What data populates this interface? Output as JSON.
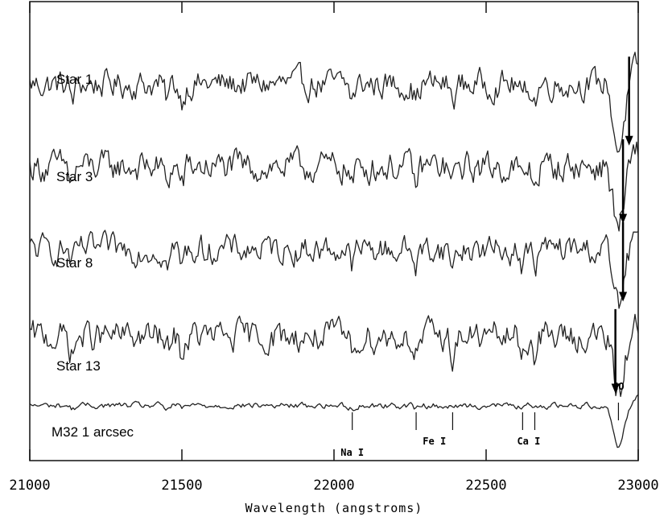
{
  "chart_data": {
    "type": "line",
    "title": "",
    "xlabel": "Wavelength (angstroms)",
    "ylabel": "",
    "xlim": [
      21000,
      23000
    ],
    "xticks": [
      21000,
      21500,
      22000,
      22500,
      23000
    ],
    "grid": false,
    "series": [
      {
        "name": "Star 1",
        "baseline": 0.82,
        "noise": 0.055,
        "co_depth": 0.14,
        "arrow_x": 22970
      },
      {
        "name": "Star 3",
        "baseline": 0.64,
        "noise": 0.06,
        "co_depth": 0.13,
        "arrow_x": 22950
      },
      {
        "name": "Star 8",
        "baseline": 0.46,
        "noise": 0.055,
        "co_depth": 0.12,
        "arrow_x": 22950
      },
      {
        "name": "Star 13",
        "baseline": 0.27,
        "noise": 0.06,
        "co_depth": 0.13,
        "arrow_x": 22925
      },
      {
        "name": "M32 1 arcsec",
        "baseline": 0.12,
        "noise": 0.012,
        "co_depth": 0.09,
        "arrow_x": null
      }
    ],
    "features": [
      {
        "label": "Na I",
        "lines": [
          22060
        ]
      },
      {
        "label": "Fe I",
        "lines": [
          22270,
          22390
        ]
      },
      {
        "label": "Ca I",
        "lines": [
          22620,
          22660
        ]
      },
      {
        "label": "CO",
        "lines": [
          22935
        ]
      }
    ]
  }
}
